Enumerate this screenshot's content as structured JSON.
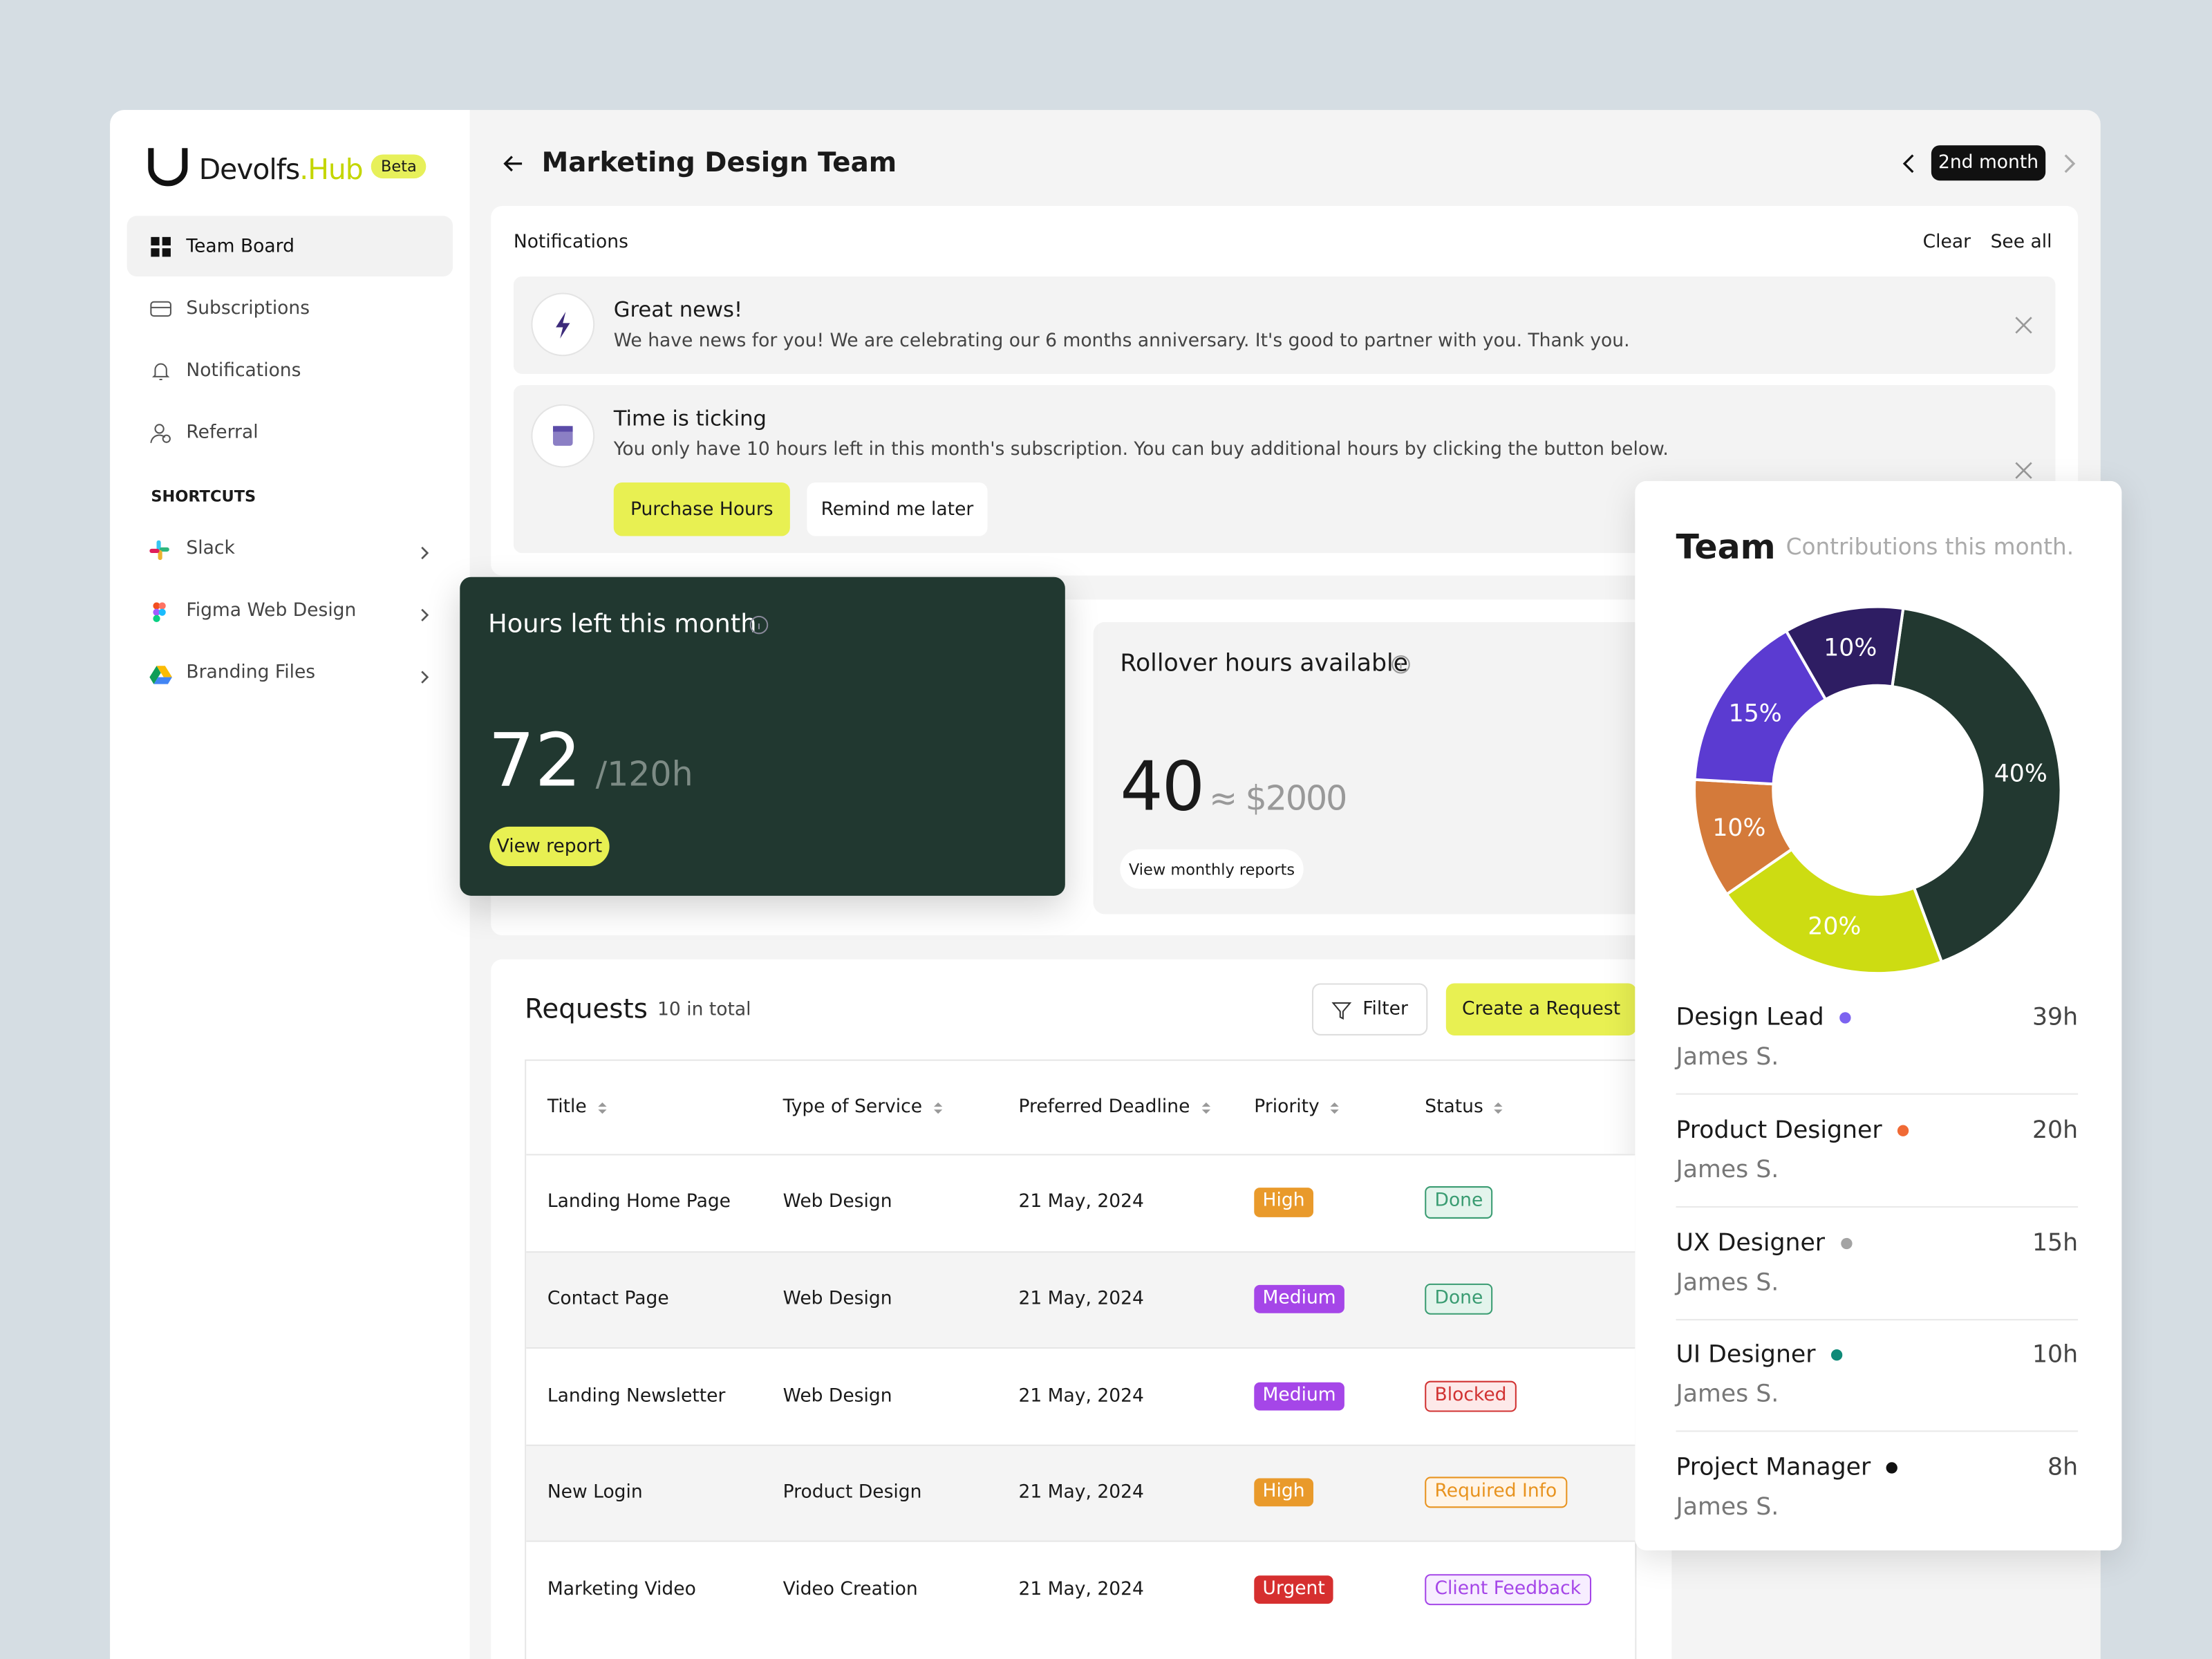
{
  "sidebar": {
    "brand": "Devolfs",
    "brand_suffix": ".Hub",
    "badge": "Beta",
    "nav": [
      "Team Board",
      "Subscriptions",
      "Notifications",
      "Referral"
    ],
    "shortcuts_title": "SHORTCUTS",
    "shortcuts": [
      "Slack",
      "Figma Web Design",
      "Branding Files"
    ]
  },
  "header": {
    "title": "Marketing Design Team",
    "period": "2nd month"
  },
  "notifications": {
    "title": "Notifications",
    "clear": "Clear",
    "see_all": "See all",
    "items": [
      {
        "title": "Great news!",
        "text": "We have news for you! We are celebrating our 6 months anniversary. It's good to partner with you. Thank you."
      },
      {
        "title": "Time is ticking",
        "text": "You only have 10 hours left in this month's subscription. You can buy additional hours by clicking the button below.",
        "primary": "Purchase Hours",
        "secondary": "Remind me later"
      }
    ]
  },
  "hours": {
    "title": "Hours left this month",
    "value": "72",
    "total": "/120h",
    "button": "View report"
  },
  "rollover": {
    "title": "Rollover hours available",
    "value": "40",
    "equivalent": "≈ $2000",
    "button": "View monthly reports"
  },
  "requests": {
    "title": "Requests",
    "count": "10 in total",
    "filter": "Filter",
    "create": "Create a Request",
    "columns": [
      "Title",
      "Type of Service",
      "Preferred Deadline",
      "Priority",
      "Status"
    ],
    "rows": [
      {
        "title": "Landing Home Page",
        "service": "Web Design",
        "deadline": "21 May, 2024",
        "priority": {
          "label": "High",
          "color": "#e99a2b"
        },
        "status": {
          "label": "Done",
          "color": "#3a9c72",
          "bg": "#e3f4ec"
        }
      },
      {
        "title": "Contact Page",
        "service": "Web Design",
        "deadline": "21 May, 2024",
        "priority": {
          "label": "Medium",
          "color": "#a546e8"
        },
        "status": {
          "label": "Done",
          "color": "#3a9c72",
          "bg": "#e3f4ec"
        }
      },
      {
        "title": "Landing Newsletter",
        "service": "Web Design",
        "deadline": "21 May, 2024",
        "priority": {
          "label": "Medium",
          "color": "#a546e8"
        },
        "status": {
          "label": "Blocked",
          "color": "#d13232",
          "bg": "#fde9e9"
        }
      },
      {
        "title": "New Login",
        "service": "Product Design",
        "deadline": "21 May, 2024",
        "priority": {
          "label": "High",
          "color": "#e99a2b"
        },
        "status": {
          "label": "Required Info",
          "color": "#e8931f",
          "bg": "#fff5e8"
        }
      },
      {
        "title": "Marketing Video",
        "service": "Video Creation",
        "deadline": "21 May, 2024",
        "priority": {
          "label": "Urgent",
          "color": "#d62f2f"
        },
        "status": {
          "label": "Client Feedback",
          "color": "#a546e8",
          "bg": "#f7eeff"
        }
      }
    ]
  },
  "team": {
    "title": "Team",
    "subtitle": "Contributions this month.",
    "members": [
      {
        "role": "Design Lead",
        "name": "James S.",
        "hours": "39h",
        "color": "#7c63f0"
      },
      {
        "role": "Product Designer",
        "name": "James S.",
        "hours": "20h",
        "color": "#f06a35"
      },
      {
        "role": "UX Designer",
        "name": "James S.",
        "hours": "15h",
        "color": "#a3a3a3"
      },
      {
        "role": "UI Designer",
        "name": "James S.",
        "hours": "10h",
        "color": "#0f8a78"
      },
      {
        "role": "Project Manager",
        "name": "James S.",
        "hours": "8h",
        "color": "#111111"
      }
    ]
  },
  "chart_data": {
    "type": "donut",
    "values": [
      40,
      20,
      10,
      15,
      10
    ],
    "value_labels": [
      "40%",
      "20%",
      "10%",
      "15%",
      "10%"
    ],
    "colors": [
      "#223830",
      "#cddc12",
      "#d47a3a",
      "#5b3bd1",
      "#2e1d63"
    ]
  }
}
